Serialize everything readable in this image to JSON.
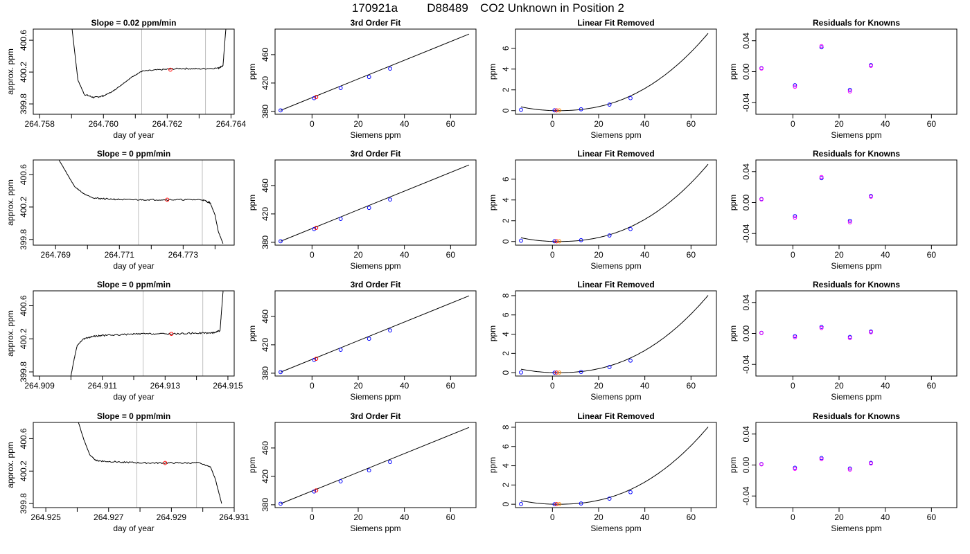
{
  "figure": {
    "title_date": "170921a",
    "title_tank": "D88489",
    "title_text": "CO2 Unknown in Position  2",
    "colors": {
      "line": "#000000",
      "ref_line": "#bebebe",
      "known_marker": "#0000ff",
      "unknown_marker": "#ff0000",
      "residual_a": "#0000ff",
      "residual_b": "#ff00ff"
    }
  },
  "chart_data": [
    {
      "type": "line",
      "row": 1,
      "col": 1,
      "title": "Slope =  0.02  ppm/min",
      "xlabel": "day of year",
      "ylabel": "approx. ppm",
      "xlim": [
        264.7578,
        264.7641
      ],
      "ylim": [
        399.67,
        400.74
      ],
      "xticks": [
        264.758,
        264.76,
        264.762,
        264.764
      ],
      "xtick_labels": [
        "264.758",
        "264.760",
        "264.762",
        "264.764"
      ],
      "xticks_minor": [
        264.759,
        264.761,
        264.763
      ],
      "yticks": [
        399.8,
        400.2,
        400.6
      ],
      "ytick_labels": [
        "399.8",
        "400.2",
        "400.6"
      ],
      "vlines": [
        264.7612,
        264.7632
      ],
      "marker": {
        "x": 264.7621,
        "y": 400.23
      },
      "series": [
        {
          "x": [
            264.759,
            264.7591,
            264.7592,
            264.7594,
            264.7597,
            264.76,
            264.7603,
            264.7606,
            264.7609,
            264.7612,
            264.7618,
            264.7624,
            264.763,
            264.7636,
            264.76375,
            264.7638,
            264.76385
          ],
          "y": [
            400.8,
            400.45,
            400.1,
            399.92,
            399.88,
            399.9,
            399.96,
            400.05,
            400.14,
            400.21,
            400.23,
            400.245,
            400.24,
            400.25,
            400.28,
            400.55,
            400.8
          ]
        }
      ]
    },
    {
      "type": "scatter",
      "row": 1,
      "col": 2,
      "title": "3rd Order Fit",
      "xlabel": "Siemens ppm",
      "ylabel": "ppm",
      "xlim": [
        -16,
        71
      ],
      "ylim": [
        376,
        496
      ],
      "xticks": [
        0,
        20,
        40,
        60
      ],
      "xtick_labels": [
        "0",
        "20",
        "40",
        "60"
      ],
      "yticks": [
        380,
        420,
        460
      ],
      "ytick_labels": [
        "380",
        "420",
        "460"
      ],
      "fit_curve": {
        "x": [
          -13.6,
          68
        ],
        "y": [
          381.5,
          489
        ]
      },
      "knowns": {
        "x": [
          -13.6,
          0.9,
          12.4,
          24.7,
          33.8
        ],
        "y": [
          381.5,
          398.7,
          413.0,
          428.5,
          440.3
        ]
      },
      "unknown": {
        "x": 1.8,
        "y": 400.2
      }
    },
    {
      "type": "scatter",
      "row": 1,
      "col": 3,
      "title": "Linear Fit Removed",
      "xlabel": "Siemens ppm",
      "ylabel": "ppm",
      "xlim": [
        -16,
        71
      ],
      "ylim": [
        -0.35,
        7.85
      ],
      "xticks": [
        0,
        20,
        40,
        60
      ],
      "xtick_labels": [
        "0",
        "20",
        "40",
        "60"
      ],
      "yticks": [
        0,
        2,
        4,
        6
      ],
      "ytick_labels": [
        "0",
        "2",
        "4",
        "6"
      ],
      "curve_end_y": 7.6,
      "knowns": {
        "x": [
          -13.6,
          0.9,
          12.4,
          24.7,
          33.8
        ],
        "y": [
          0.08,
          0.03,
          0.13,
          0.58,
          1.2
        ]
      },
      "unknown": {
        "x": 1.8,
        "y": 0.02
      }
    },
    {
      "type": "scatter",
      "row": 1,
      "col": 4,
      "title": "Residuals for Knowns",
      "xlabel": "Siemens ppm",
      "ylabel": "ppm",
      "xlim": [
        -16,
        71
      ],
      "ylim": [
        -0.055,
        0.055
      ],
      "xticks": [
        0,
        20,
        40,
        60
      ],
      "xtick_labels": [
        "0",
        "20",
        "40",
        "60"
      ],
      "yticks": [
        -0.04,
        0.0,
        0.04
      ],
      "ytick_labels": [
        "-0.04",
        "0.00",
        "0.04"
      ],
      "residuals_a": {
        "x": [
          -13.6,
          0.9,
          12.4,
          24.7,
          33.8
        ],
        "y": [
          0.0045,
          -0.0175,
          0.0315,
          -0.0235,
          0.0085
        ]
      },
      "residuals_b": {
        "x": [
          -13.6,
          0.9,
          12.4,
          24.7,
          33.8
        ],
        "y": [
          0.004,
          -0.0195,
          0.033,
          -0.0255,
          0.0075
        ]
      }
    },
    {
      "type": "line",
      "row": 2,
      "col": 1,
      "title": "Slope =  0  ppm/min",
      "xlabel": "day of year",
      "ylabel": "approx. ppm",
      "xlim": [
        264.7683,
        264.7746
      ],
      "ylim": [
        399.73,
        400.78
      ],
      "xticks": [
        264.769,
        264.771,
        264.773
      ],
      "xtick_labels": [
        "264.769",
        "264.771",
        "264.773"
      ],
      "xticks_minor": [
        264.77,
        264.772,
        264.774
      ],
      "yticks": [
        399.8,
        400.2,
        400.6
      ],
      "ytick_labels": [
        "399.8",
        "400.2",
        "400.6"
      ],
      "vlines": [
        264.7716,
        264.7736
      ],
      "marker": {
        "x": 264.7725,
        "y": 400.29
      },
      "series": [
        {
          "x": [
            264.769,
            264.7693,
            264.7696,
            264.7699,
            264.7702,
            264.7706,
            264.7712,
            264.7718,
            264.7724,
            264.773,
            264.7736,
            264.77385,
            264.774,
            264.7741,
            264.77425
          ],
          "y": [
            400.85,
            400.65,
            400.45,
            400.36,
            400.31,
            400.3,
            400.29,
            400.29,
            400.29,
            400.29,
            400.29,
            400.25,
            400.1,
            399.9,
            399.75
          ]
        }
      ]
    },
    {
      "type": "scatter",
      "row": 2,
      "col": 2,
      "title": "3rd Order Fit",
      "xlabel": "Siemens ppm",
      "ylabel": "ppm",
      "xlim": [
        -16,
        71
      ],
      "ylim": [
        376,
        496
      ],
      "xticks": [
        0,
        20,
        40,
        60
      ],
      "xtick_labels": [
        "0",
        "20",
        "40",
        "60"
      ],
      "yticks": [
        380,
        420,
        460
      ],
      "ytick_labels": [
        "380",
        "420",
        "460"
      ],
      "fit_curve": {
        "x": [
          -13.6,
          68
        ],
        "y": [
          381.5,
          489
        ]
      },
      "knowns": {
        "x": [
          -13.6,
          0.9,
          12.4,
          24.7,
          33.8
        ],
        "y": [
          381.5,
          398.7,
          413.0,
          428.5,
          440.3
        ]
      },
      "unknown": {
        "x": 1.8,
        "y": 400.3
      }
    },
    {
      "type": "scatter",
      "row": 2,
      "col": 3,
      "title": "Linear Fit Removed",
      "xlabel": "Siemens ppm",
      "ylabel": "ppm",
      "xlim": [
        -16,
        71
      ],
      "ylim": [
        -0.35,
        7.85
      ],
      "xticks": [
        0,
        20,
        40,
        60
      ],
      "xtick_labels": [
        "0",
        "20",
        "40",
        "60"
      ],
      "yticks": [
        0,
        2,
        4,
        6
      ],
      "ytick_labels": [
        "0",
        "2",
        "4",
        "6"
      ],
      "curve_end_y": 7.6,
      "knowns": {
        "x": [
          -13.6,
          0.9,
          12.4,
          24.7,
          33.8
        ],
        "y": [
          0.08,
          0.03,
          0.13,
          0.58,
          1.2
        ]
      },
      "unknown": {
        "x": 1.8,
        "y": 0.02
      }
    },
    {
      "type": "scatter",
      "row": 2,
      "col": 4,
      "title": "Residuals for Knowns",
      "xlabel": "Siemens ppm",
      "ylabel": "ppm",
      "xlim": [
        -16,
        71
      ],
      "ylim": [
        -0.055,
        0.055
      ],
      "xticks": [
        0,
        20,
        40,
        60
      ],
      "xtick_labels": [
        "0",
        "20",
        "40",
        "60"
      ],
      "yticks": [
        -0.04,
        0.0,
        0.04
      ],
      "ytick_labels": [
        "-0.04",
        "0.00",
        "0.04"
      ],
      "residuals_a": {
        "x": [
          -13.6,
          0.9,
          12.4,
          24.7,
          33.8
        ],
        "y": [
          0.0045,
          -0.0175,
          0.0315,
          -0.0235,
          0.0085
        ]
      },
      "residuals_b": {
        "x": [
          -13.6,
          0.9,
          12.4,
          24.7,
          33.8
        ],
        "y": [
          0.004,
          -0.0195,
          0.033,
          -0.0255,
          0.0075
        ]
      }
    },
    {
      "type": "line",
      "row": 3,
      "col": 1,
      "title": "Slope =  0  ppm/min",
      "xlabel": "day of year",
      "ylabel": "approx. ppm",
      "xlim": [
        264.9088,
        264.9152
      ],
      "ylim": [
        399.75,
        400.78
      ],
      "xticks": [
        264.909,
        264.911,
        264.913,
        264.915
      ],
      "xtick_labels": [
        "264.909",
        "264.911",
        "264.913",
        "264.915"
      ],
      "xticks_minor": [
        264.91,
        264.912,
        264.914
      ],
      "yticks": [
        399.8,
        400.2,
        400.6
      ],
      "ytick_labels": [
        "399.8",
        "400.2",
        "400.6"
      ],
      "vlines": [
        264.9123,
        264.9142
      ],
      "marker": {
        "x": 264.9132,
        "y": 400.26
      },
      "series": [
        {
          "x": [
            264.91,
            264.9101,
            264.9102,
            264.9104,
            264.9107,
            264.911,
            264.9116,
            264.9122,
            264.9128,
            264.9134,
            264.914,
            264.9145,
            264.91475,
            264.9148,
            264.91485
          ],
          "y": [
            399.75,
            399.95,
            400.12,
            400.2,
            400.23,
            400.24,
            400.25,
            400.26,
            400.26,
            400.26,
            400.27,
            400.27,
            400.3,
            400.55,
            400.8
          ]
        }
      ]
    },
    {
      "type": "scatter",
      "row": 3,
      "col": 2,
      "title": "3rd Order Fit",
      "xlabel": "Siemens ppm",
      "ylabel": "ppm",
      "xlim": [
        -16,
        71
      ],
      "ylim": [
        376,
        496
      ],
      "xticks": [
        0,
        20,
        40,
        60
      ],
      "xtick_labels": [
        "0",
        "20",
        "40",
        "60"
      ],
      "yticks": [
        380,
        420,
        460
      ],
      "ytick_labels": [
        "380",
        "420",
        "460"
      ],
      "fit_curve": {
        "x": [
          -13.6,
          68
        ],
        "y": [
          381.5,
          489
        ]
      },
      "knowns": {
        "x": [
          -13.6,
          0.9,
          12.4,
          24.7,
          33.8
        ],
        "y": [
          381.5,
          398.7,
          413.0,
          428.5,
          440.3
        ]
      },
      "unknown": {
        "x": 1.8,
        "y": 400.3
      }
    },
    {
      "type": "scatter",
      "row": 3,
      "col": 3,
      "title": "Linear Fit Removed",
      "xlabel": "Siemens ppm",
      "ylabel": "ppm",
      "xlim": [
        -16,
        71
      ],
      "ylim": [
        -0.35,
        8.5
      ],
      "xticks": [
        0,
        20,
        40,
        60
      ],
      "xtick_labels": [
        "0",
        "20",
        "40",
        "60"
      ],
      "yticks": [
        0,
        2,
        4,
        6,
        8
      ],
      "ytick_labels": [
        "0",
        "2",
        "4",
        "6",
        "8"
      ],
      "curve_end_y": 8.2,
      "knowns": {
        "x": [
          -13.6,
          0.9,
          12.4,
          24.7,
          33.8
        ],
        "y": [
          0.02,
          0.0,
          0.08,
          0.58,
          1.25
        ]
      },
      "unknown": {
        "x": 1.8,
        "y": 0.01
      }
    },
    {
      "type": "scatter",
      "row": 3,
      "col": 4,
      "title": "Residuals for Knowns",
      "xlabel": "Siemens ppm",
      "ylabel": "ppm",
      "xlim": [
        -16,
        71
      ],
      "ylim": [
        -0.055,
        0.055
      ],
      "xticks": [
        0,
        20,
        40,
        60
      ],
      "xtick_labels": [
        "0",
        "20",
        "40",
        "60"
      ],
      "yticks": [
        -0.04,
        0.0,
        0.04
      ],
      "ytick_labels": [
        "-0.04",
        "0.00",
        "0.04"
      ],
      "residuals_a": {
        "x": [
          -13.6,
          0.9,
          12.4,
          24.7,
          33.8
        ],
        "y": [
          0.0008,
          -0.0035,
          0.0085,
          -0.0045,
          0.0025
        ]
      },
      "residuals_b": {
        "x": [
          -13.6,
          0.9,
          12.4,
          24.7,
          33.8
        ],
        "y": [
          0.0005,
          -0.005,
          0.007,
          -0.006,
          0.0015
        ]
      }
    },
    {
      "type": "line",
      "row": 4,
      "col": 1,
      "title": "Slope =  0  ppm/min",
      "xlabel": "day of year",
      "ylabel": "approx. ppm",
      "xlim": [
        264.9246,
        264.931
      ],
      "ylim": [
        399.75,
        400.8
      ],
      "xticks": [
        264.925,
        264.927,
        264.929,
        264.931
      ],
      "xtick_labels": [
        "264.925",
        "264.927",
        "264.929",
        "264.931"
      ],
      "xticks_minor": [
        264.926,
        264.928,
        264.93
      ],
      "yticks": [
        399.8,
        400.2,
        400.6
      ],
      "ytick_labels": [
        "399.8",
        "400.2",
        "400.6"
      ],
      "vlines": [
        264.9279,
        264.9298
      ],
      "marker": {
        "x": 264.9288,
        "y": 400.3
      },
      "series": [
        {
          "x": [
            264.926,
            264.9262,
            264.9264,
            264.9266,
            264.9269,
            264.9275,
            264.9281,
            264.9287,
            264.9293,
            264.9299,
            264.93025,
            264.9304,
            264.9305,
            264.9306
          ],
          "y": [
            400.85,
            400.6,
            400.4,
            400.33,
            400.32,
            400.31,
            400.3,
            400.3,
            400.3,
            400.3,
            400.25,
            400.1,
            399.95,
            399.8
          ]
        }
      ]
    },
    {
      "type": "scatter",
      "row": 4,
      "col": 2,
      "title": "3rd Order Fit",
      "xlabel": "Siemens ppm",
      "ylabel": "ppm",
      "xlim": [
        -16,
        71
      ],
      "ylim": [
        376,
        496
      ],
      "xticks": [
        0,
        20,
        40,
        60
      ],
      "xtick_labels": [
        "0",
        "20",
        "40",
        "60"
      ],
      "yticks": [
        380,
        420,
        460
      ],
      "ytick_labels": [
        "380",
        "420",
        "460"
      ],
      "fit_curve": {
        "x": [
          -13.6,
          68
        ],
        "y": [
          381.5,
          489
        ]
      },
      "knowns": {
        "x": [
          -13.6,
          0.9,
          12.4,
          24.7,
          33.8
        ],
        "y": [
          381.5,
          398.7,
          413.0,
          428.5,
          440.3
        ]
      },
      "unknown": {
        "x": 1.8,
        "y": 400.3
      }
    },
    {
      "type": "scatter",
      "row": 4,
      "col": 3,
      "title": "Linear Fit Removed",
      "xlabel": "Siemens ppm",
      "ylabel": "ppm",
      "xlim": [
        -16,
        71
      ],
      "ylim": [
        -0.35,
        8.5
      ],
      "xticks": [
        0,
        20,
        40,
        60
      ],
      "xtick_labels": [
        "0",
        "20",
        "40",
        "60"
      ],
      "yticks": [
        0,
        2,
        4,
        6,
        8
      ],
      "ytick_labels": [
        "0",
        "2",
        "4",
        "6",
        "8"
      ],
      "curve_end_y": 8.2,
      "knowns": {
        "x": [
          -13.6,
          0.9,
          12.4,
          24.7,
          33.8
        ],
        "y": [
          0.02,
          0.0,
          0.08,
          0.58,
          1.25
        ]
      },
      "unknown": {
        "x": 1.8,
        "y": 0.01
      }
    },
    {
      "type": "scatter",
      "row": 4,
      "col": 4,
      "title": "Residuals for Knowns",
      "xlabel": "Siemens ppm",
      "ylabel": "ppm",
      "xlim": [
        -16,
        71
      ],
      "ylim": [
        -0.055,
        0.055
      ],
      "xticks": [
        0,
        20,
        40,
        60
      ],
      "xtick_labels": [
        "0",
        "20",
        "40",
        "60"
      ],
      "yticks": [
        -0.04,
        0.0,
        0.04
      ],
      "ytick_labels": [
        "-0.04",
        "0.00",
        "0.04"
      ],
      "residuals_a": {
        "x": [
          -13.6,
          0.9,
          12.4,
          24.7,
          33.8
        ],
        "y": [
          0.0012,
          -0.0035,
          0.009,
          -0.0045,
          0.0028
        ]
      },
      "residuals_b": {
        "x": [
          -13.6,
          0.9,
          12.4,
          24.7,
          33.8
        ],
        "y": [
          0.0008,
          -0.005,
          0.0075,
          -0.006,
          0.002
        ]
      }
    }
  ]
}
